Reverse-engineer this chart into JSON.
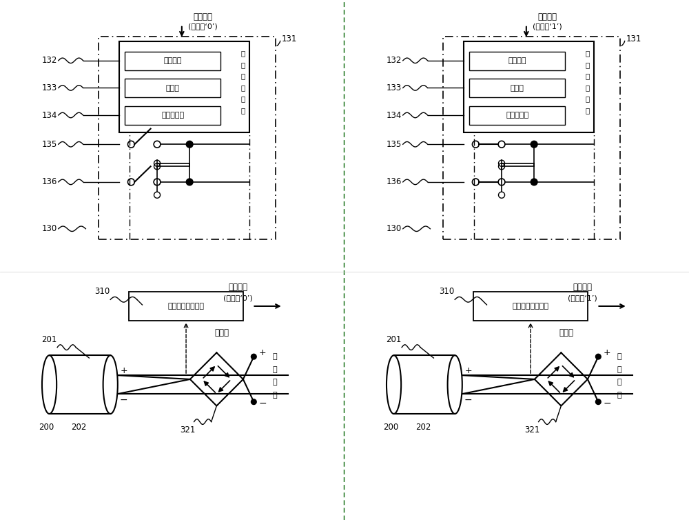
{
  "bg_color": "#ffffff",
  "line_color": "#000000",
  "purple_color": "#800080",
  "green_color": "#006400",
  "box_labels": [
    "数据接口",
    "处理器",
    "隔离与驱动"
  ],
  "side_label": "开关控制电路",
  "ref_131": "131",
  "ref_132": "132",
  "ref_133": "133",
  "ref_134": "134",
  "ref_135": "135",
  "ref_136": "136",
  "ref_130": "130",
  "panel0_title1": "控制数据",
  "panel0_title2": "(数据位‘0’)",
  "panel1_title1": "控制数据",
  "panel1_title2": "(数据位‘1’)",
  "ref_310": "310",
  "ref_201": "201",
  "ref_200": "200",
  "ref_202": "202",
  "ref_321": "321",
  "detector_label": "线序状态检测电路",
  "bridge_label": "整流桥",
  "motor_label": "电机电源"
}
